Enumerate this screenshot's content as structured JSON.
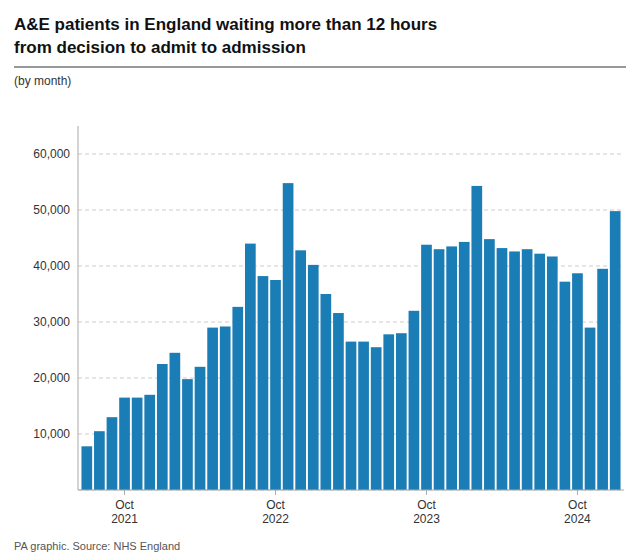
{
  "chart_data": {
    "type": "bar",
    "title": "A&E patients in England waiting more than 12 hours\nfrom decision to admit to admission",
    "subtitle": "(by month)",
    "annotations": [
      "PA graphic. Source: NHS England"
    ],
    "categories": [
      null,
      null,
      null,
      "Oct\n2021",
      null,
      null,
      null,
      null,
      null,
      null,
      null,
      null,
      null,
      null,
      null,
      "Oct\n2022",
      null,
      null,
      null,
      null,
      null,
      null,
      null,
      null,
      null,
      null,
      null,
      "Oct\n2023",
      null,
      null,
      null,
      null,
      null,
      null,
      null,
      null,
      null,
      null,
      null,
      "Oct\n2024",
      null,
      null,
      null
    ],
    "values": [
      7800,
      10500,
      13000,
      16500,
      16500,
      17000,
      22500,
      24500,
      19800,
      22000,
      29000,
      29200,
      32700,
      44000,
      38200,
      37500,
      54800,
      42800,
      40200,
      35000,
      31600,
      26500,
      26500,
      25500,
      27800,
      28000,
      32000,
      43800,
      43000,
      43500,
      44300,
      54300,
      44800,
      43200,
      42600,
      43000,
      42200,
      41700,
      37200,
      38700,
      29000,
      39500,
      49800
    ],
    "color": "#1b7db5",
    "ylim": [
      0,
      65000
    ],
    "yticks": [
      {
        "value": 0,
        "label": ""
      },
      {
        "value": 10000,
        "label": "10,000"
      },
      {
        "value": 20000,
        "label": "20,000"
      },
      {
        "value": 30000,
        "label": "30,000"
      },
      {
        "value": 40000,
        "label": "40,000"
      },
      {
        "value": 50000,
        "label": "50,000"
      },
      {
        "value": 60000,
        "label": "60,000"
      }
    ],
    "grid": true
  }
}
